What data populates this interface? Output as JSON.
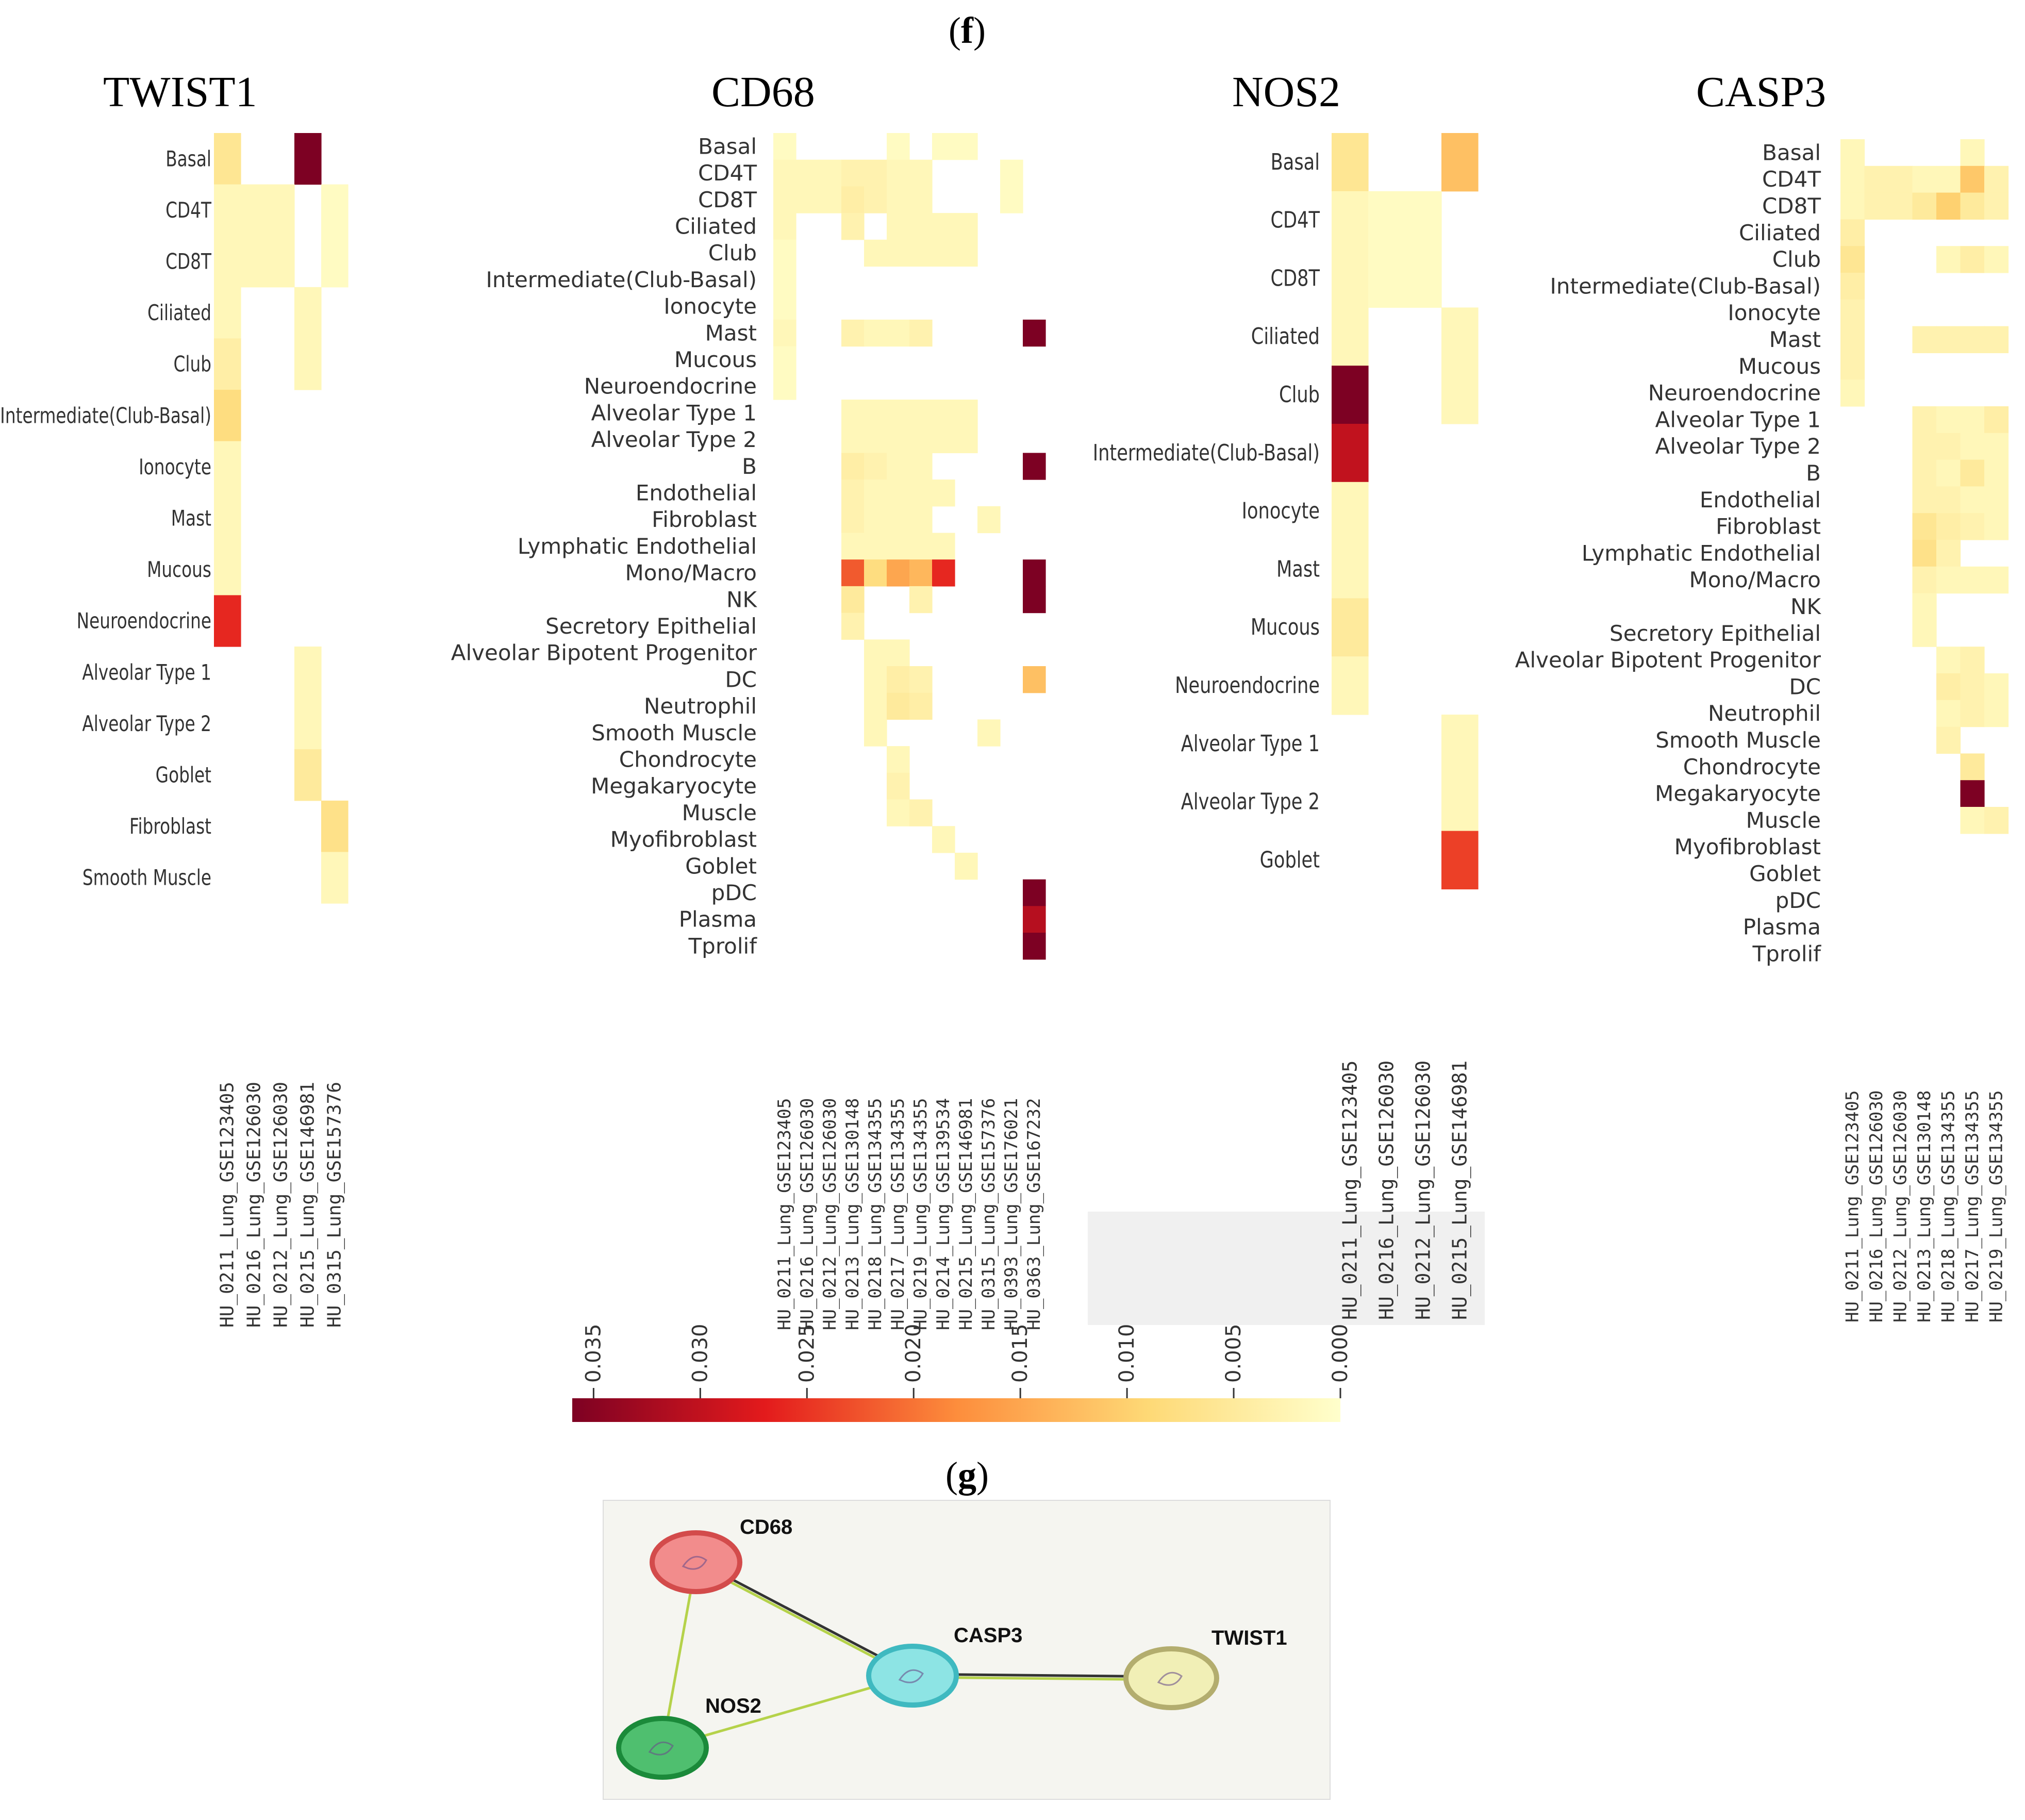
{
  "figure": {
    "panel_f_label": "f",
    "panel_g_label": "g"
  },
  "chart_data": [
    {
      "type": "heatmap",
      "title": "TWIST1",
      "rows": [
        "Basal",
        "CD4T",
        "CD8T",
        "Ciliated",
        "Club",
        "Intermediate(Club-Basal)",
        "Ionocyte",
        "Mast",
        "Mucous",
        "Neuroendocrine",
        "Alveolar Type 1",
        "Alveolar Type 2",
        "Goblet",
        "Fibroblast",
        "Smooth Muscle"
      ],
      "columns": [
        "HU_0211_Lung_GSE123405",
        "HU_0216_Lung_GSE126030",
        "HU_0212_Lung_GSE126030",
        "HU_0215_Lung_GSE146981",
        "HU_0315_Lung_GSE157376"
      ],
      "values": [
        [
          0.006,
          null,
          null,
          0.036,
          null
        ],
        [
          0.002,
          0.002,
          0.002,
          null,
          0.001
        ],
        [
          0.002,
          0.002,
          0.002,
          null,
          0.001
        ],
        [
          0.002,
          null,
          null,
          0.002,
          null
        ],
        [
          0.004,
          null,
          null,
          0.002,
          null
        ],
        [
          0.008,
          null,
          null,
          null,
          null
        ],
        [
          0.002,
          null,
          null,
          null,
          null
        ],
        [
          0.002,
          null,
          null,
          null,
          null
        ],
        [
          0.002,
          null,
          null,
          null,
          null
        ],
        [
          0.026,
          null,
          null,
          null,
          null
        ],
        [
          null,
          null,
          null,
          0.002,
          null
        ],
        [
          null,
          null,
          null,
          0.002,
          null
        ],
        [
          null,
          null,
          null,
          0.005,
          null
        ],
        [
          null,
          null,
          null,
          null,
          0.007
        ],
        [
          null,
          null,
          null,
          null,
          0.002
        ]
      ]
    },
    {
      "type": "heatmap",
      "title": "CD68",
      "rows": [
        "Basal",
        "CD4T",
        "CD8T",
        "Ciliated",
        "Club",
        "Intermediate(Club-Basal)",
        "Ionocyte",
        "Mast",
        "Mucous",
        "Neuroendocrine",
        "Alveolar Type 1",
        "Alveolar Type 2",
        "B",
        "Endothelial",
        "Fibroblast",
        "Lymphatic Endothelial",
        "Mono/Macro",
        "NK",
        "Secretory Epithelial",
        "Alveolar Bipotent Progenitor",
        "DC",
        "Neutrophil",
        "Smooth Muscle",
        "Chondrocyte",
        "Megakaryocyte",
        "Muscle",
        "Myofibroblast",
        "Goblet",
        "pDC",
        "Plasma",
        "Tprolif"
      ],
      "columns": [
        "HU_0211_Lung_GSE123405",
        "HU_0216_Lung_GSE126030",
        "HU_0212_Lung_GSE126030",
        "HU_0213_Lung_GSE130148",
        "HU_0218_Lung_GSE134355",
        "HU_0217_Lung_GSE134355",
        "HU_0219_Lung_GSE134355",
        "HU_0214_Lung_GSE139534",
        "HU_0215_Lung_GSE146981",
        "HU_0315_Lung_GSE157376",
        "HU_0393_Lung_GSE176021",
        "HU_0363_Lung_GSE167232"
      ],
      "values": [
        [
          0.001,
          null,
          null,
          null,
          null,
          0.001,
          null,
          0.001,
          0.001,
          null,
          null,
          null
        ],
        [
          0.002,
          0.002,
          0.002,
          0.003,
          0.003,
          0.002,
          0.002,
          null,
          null,
          null,
          0.001,
          null
        ],
        [
          0.002,
          0.002,
          0.002,
          0.004,
          0.003,
          0.002,
          0.002,
          null,
          null,
          null,
          0.001,
          null
        ],
        [
          0.002,
          null,
          null,
          0.003,
          null,
          0.002,
          0.002,
          0.002,
          0.002,
          null,
          null,
          null
        ],
        [
          0.001,
          null,
          null,
          null,
          0.002,
          0.002,
          0.002,
          0.002,
          0.002,
          null,
          null,
          null
        ],
        [
          0.001,
          null,
          null,
          null,
          null,
          null,
          null,
          null,
          null,
          null,
          null,
          null
        ],
        [
          0.001,
          null,
          null,
          null,
          null,
          null,
          null,
          null,
          null,
          null,
          null,
          null
        ],
        [
          0.002,
          null,
          null,
          0.003,
          0.002,
          0.002,
          0.003,
          null,
          null,
          null,
          null,
          0.036
        ],
        [
          0.001,
          null,
          null,
          null,
          null,
          null,
          null,
          null,
          null,
          null,
          null,
          null
        ],
        [
          0.001,
          null,
          null,
          null,
          null,
          null,
          null,
          null,
          null,
          null,
          null,
          null
        ],
        [
          null,
          null,
          null,
          0.002,
          0.002,
          0.002,
          0.002,
          0.002,
          0.002,
          null,
          null,
          null
        ],
        [
          null,
          null,
          null,
          0.002,
          0.002,
          0.002,
          0.002,
          0.002,
          0.002,
          null,
          null,
          null
        ],
        [
          null,
          null,
          null,
          0.004,
          0.003,
          0.002,
          0.002,
          null,
          null,
          null,
          null,
          0.036
        ],
        [
          null,
          null,
          null,
          0.003,
          0.002,
          0.002,
          0.002,
          0.002,
          null,
          null,
          null,
          null
        ],
        [
          null,
          null,
          null,
          0.003,
          0.002,
          0.002,
          0.002,
          null,
          null,
          0.002,
          null,
          null
        ],
        [
          null,
          null,
          null,
          0.002,
          0.002,
          0.002,
          0.002,
          0.002,
          null,
          null,
          null,
          null
        ],
        [
          null,
          null,
          null,
          0.022,
          0.008,
          0.015,
          0.013,
          0.026,
          null,
          null,
          null,
          0.036
        ],
        [
          null,
          null,
          null,
          0.005,
          null,
          null,
          0.003,
          null,
          null,
          null,
          null,
          0.036
        ],
        [
          null,
          null,
          null,
          0.003,
          null,
          null,
          null,
          null,
          null,
          null,
          null,
          null
        ],
        [
          null,
          null,
          null,
          null,
          0.002,
          0.002,
          null,
          null,
          null,
          null,
          null,
          null
        ],
        [
          null,
          null,
          null,
          null,
          0.002,
          0.004,
          0.003,
          null,
          null,
          null,
          null,
          0.012
        ],
        [
          null,
          null,
          null,
          null,
          0.002,
          0.005,
          0.004,
          null,
          null,
          null,
          null,
          null
        ],
        [
          null,
          null,
          null,
          null,
          0.002,
          null,
          null,
          null,
          null,
          0.002,
          null,
          null
        ],
        [
          null,
          null,
          null,
          null,
          null,
          0.002,
          null,
          null,
          null,
          null,
          null,
          null
        ],
        [
          null,
          null,
          null,
          null,
          null,
          0.003,
          null,
          null,
          null,
          null,
          null,
          null
        ],
        [
          null,
          null,
          null,
          null,
          null,
          0.002,
          0.003,
          null,
          null,
          null,
          null,
          null
        ],
        [
          null,
          null,
          null,
          null,
          null,
          null,
          null,
          0.002,
          null,
          null,
          null,
          null
        ],
        [
          null,
          null,
          null,
          null,
          null,
          null,
          null,
          null,
          0.002,
          null,
          null,
          null
        ],
        [
          null,
          null,
          null,
          null,
          null,
          null,
          null,
          null,
          null,
          null,
          null,
          0.036
        ],
        [
          null,
          null,
          null,
          null,
          null,
          null,
          null,
          null,
          null,
          null,
          null,
          0.031
        ],
        [
          null,
          null,
          null,
          null,
          null,
          null,
          null,
          null,
          null,
          null,
          null,
          0.036
        ]
      ]
    },
    {
      "type": "heatmap",
      "title": "NOS2",
      "rows": [
        "Basal",
        "CD4T",
        "CD8T",
        "Ciliated",
        "Club",
        "Intermediate(Club-Basal)",
        "Ionocyte",
        "Mast",
        "Mucous",
        "Neuroendocrine",
        "Alveolar Type 1",
        "Alveolar Type 2",
        "Goblet"
      ],
      "columns": [
        "HU_0211_Lung_GSE123405",
        "HU_0216_Lung_GSE126030",
        "HU_0212_Lung_GSE126030",
        "HU_0215_Lung_GSE146981"
      ],
      "values": [
        [
          0.006,
          null,
          null,
          0.012
        ],
        [
          0.002,
          0.001,
          0.001,
          null
        ],
        [
          0.002,
          0.001,
          0.001,
          null
        ],
        [
          0.002,
          null,
          null,
          0.002
        ],
        [
          0.036,
          null,
          null,
          0.002
        ],
        [
          0.03,
          null,
          null,
          null
        ],
        [
          0.002,
          null,
          null,
          null
        ],
        [
          0.002,
          null,
          null,
          null
        ],
        [
          0.005,
          null,
          null,
          null
        ],
        [
          0.002,
          null,
          null,
          null
        ],
        [
          null,
          null,
          null,
          0.002
        ],
        [
          null,
          null,
          null,
          0.002
        ],
        [
          null,
          null,
          null,
          0.024
        ]
      ]
    },
    {
      "type": "heatmap",
      "title": "CASP3",
      "rows": [
        "Basal",
        "CD4T",
        "CD8T",
        "Ciliated",
        "Club",
        "Intermediate(Club-Basal)",
        "Ionocyte",
        "Mast",
        "Mucous",
        "Neuroendocrine",
        "Alveolar Type 1",
        "Alveolar Type 2",
        "B",
        "Endothelial",
        "Fibroblast",
        "Lymphatic Endothelial",
        "Mono/Macro",
        "NK",
        "Secretory Epithelial",
        "Alveolar Bipotent Progenitor",
        "DC",
        "Neutrophil",
        "Smooth Muscle",
        "Chondrocyte",
        "Megakaryocyte",
        "Muscle",
        "Myofibroblast",
        "Goblet",
        "pDC",
        "Plasma",
        "Tprolif"
      ],
      "columns": [
        "HU_0211_Lung_GSE123405",
        "HU_0216_Lung_GSE126030",
        "HU_0212_Lung_GSE126030",
        "HU_0213_Lung_GSE130148",
        "HU_0218_Lung_GSE134355",
        "HU_0217_Lung_GSE134355",
        "HU_0219_Lung_GSE134355"
      ],
      "values": [
        [
          0.002,
          null,
          null,
          null,
          null,
          0.002,
          null
        ],
        [
          0.002,
          0.003,
          0.003,
          0.002,
          0.002,
          0.011,
          0.003
        ],
        [
          0.002,
          0.003,
          0.003,
          0.005,
          0.01,
          0.005,
          0.003
        ],
        [
          0.004,
          null,
          null,
          null,
          null,
          null,
          null
        ],
        [
          0.006,
          null,
          null,
          null,
          0.002,
          0.004,
          0.002
        ],
        [
          0.004,
          null,
          null,
          null,
          null,
          null,
          null
        ],
        [
          0.003,
          null,
          null,
          null,
          null,
          null,
          null
        ],
        [
          0.003,
          null,
          null,
          0.003,
          0.003,
          0.003,
          0.003
        ],
        [
          0.003,
          null,
          null,
          null,
          null,
          null,
          null
        ],
        [
          0.002,
          null,
          null,
          null,
          null,
          null,
          null
        ],
        [
          null,
          null,
          null,
          0.003,
          0.002,
          0.002,
          0.004
        ],
        [
          null,
          null,
          null,
          0.003,
          0.003,
          0.002,
          0.002
        ],
        [
          null,
          null,
          null,
          0.003,
          0.002,
          0.005,
          0.002
        ],
        [
          null,
          null,
          null,
          0.003,
          0.003,
          0.002,
          0.002
        ],
        [
          null,
          null,
          null,
          0.006,
          0.004,
          0.003,
          0.002
        ],
        [
          null,
          null,
          null,
          0.007,
          0.003,
          null,
          null
        ],
        [
          null,
          null,
          null,
          0.003,
          0.002,
          0.002,
          0.002
        ],
        [
          null,
          null,
          null,
          0.002,
          null,
          null,
          null
        ],
        [
          null,
          null,
          null,
          0.002,
          null,
          null,
          null
        ],
        [
          null,
          null,
          null,
          null,
          0.002,
          0.003,
          null
        ],
        [
          null,
          null,
          null,
          null,
          0.004,
          0.003,
          0.002
        ],
        [
          null,
          null,
          null,
          null,
          0.002,
          0.003,
          0.002
        ],
        [
          null,
          null,
          null,
          null,
          0.003,
          null,
          null
        ],
        [
          null,
          null,
          null,
          null,
          null,
          0.005,
          null
        ],
        [
          null,
          null,
          null,
          null,
          null,
          0.036,
          null
        ],
        [
          null,
          null,
          null,
          null,
          null,
          0.002,
          0.003
        ],
        [
          null,
          null,
          null,
          null,
          null,
          null,
          null
        ],
        [
          null,
          null,
          null,
          null,
          null,
          null,
          null
        ],
        [
          null,
          null,
          null,
          null,
          null,
          null,
          null
        ],
        [
          null,
          null,
          null,
          null,
          null,
          null,
          null
        ],
        [
          null,
          null,
          null,
          null,
          null,
          null,
          null
        ]
      ]
    },
    {
      "type": "colorbar",
      "range": [
        0.0,
        0.036
      ],
      "ticks": [
        "0.035",
        "0.030",
        "0.025",
        "0.020",
        "0.015",
        "0.010",
        "0.005",
        "0.000"
      ],
      "tick_values": [
        0.035,
        0.03,
        0.025,
        0.02,
        0.015,
        0.01,
        0.005,
        0.0
      ]
    },
    {
      "type": "network",
      "nodes": [
        {
          "id": "CD68",
          "label": "CD68",
          "color": "#f28c8c"
        },
        {
          "id": "CASP3",
          "label": "CASP3",
          "color": "#8de4e4"
        },
        {
          "id": "TWIST1",
          "label": "TWIST1",
          "color": "#f1efb6"
        },
        {
          "id": "NOS2",
          "label": "NOS2",
          "color": "#4fbf6f"
        }
      ],
      "edges": [
        {
          "source": "CD68",
          "target": "CASP3",
          "colors": [
            "#333333",
            "#b5d24a"
          ]
        },
        {
          "source": "CD68",
          "target": "NOS2",
          "colors": [
            "#b5d24a"
          ]
        },
        {
          "source": "NOS2",
          "target": "CASP3",
          "colors": [
            "#b5d24a"
          ]
        },
        {
          "source": "CASP3",
          "target": "TWIST1",
          "colors": [
            "#333333",
            "#b5d24a"
          ]
        }
      ]
    }
  ]
}
